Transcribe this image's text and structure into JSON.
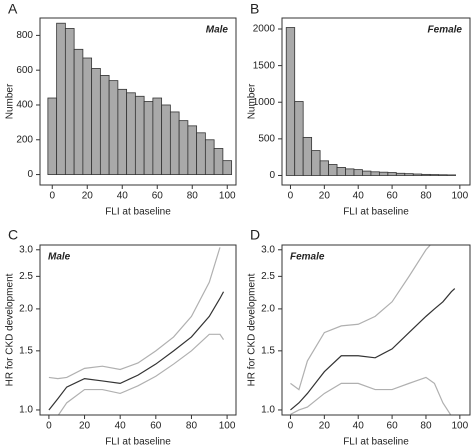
{
  "chart_data": [
    {
      "type": "histogram",
      "panel": "A",
      "annotation": "Male",
      "annotation_position": "top-right",
      "x_label": "FLI at baseline",
      "y_label": "Number",
      "color": "#a9a9a9",
      "bins": [
        -2.5,
        2.5,
        7.5,
        12.5,
        17.5,
        22.5,
        27.5,
        32.5,
        37.5,
        42.5,
        47.5,
        52.5,
        57.5,
        62.5,
        67.5,
        72.5,
        77.5,
        82.5,
        87.5,
        92.5,
        97.5,
        102.5
      ],
      "values": [
        440,
        870,
        840,
        720,
        670,
        610,
        570,
        540,
        490,
        470,
        450,
        420,
        440,
        400,
        360,
        310,
        280,
        240,
        200,
        150,
        80
      ],
      "xlim": [
        -7,
        105
      ],
      "xticks": [
        0,
        20,
        40,
        60,
        80,
        100
      ],
      "ylim": [
        -60,
        900
      ],
      "yticks": [
        0,
        200,
        400,
        600,
        800
      ]
    },
    {
      "type": "histogram",
      "panel": "B",
      "annotation": "Female",
      "annotation_position": "top-right",
      "x_label": "FLI at baseline",
      "y_label": "Number",
      "color": "#a9a9a9",
      "bins": [
        -2.5,
        2.5,
        7.5,
        12.5,
        17.5,
        22.5,
        27.5,
        32.5,
        37.5,
        42.5,
        47.5,
        52.5,
        57.5,
        62.5,
        67.5,
        72.5,
        77.5,
        82.5,
        87.5,
        92.5,
        97.5
      ],
      "values": [
        2020,
        1010,
        520,
        340,
        200,
        150,
        110,
        90,
        80,
        60,
        50,
        45,
        40,
        30,
        25,
        20,
        15,
        12,
        10,
        8
      ],
      "xlim": [
        -5,
        106
      ],
      "xticks": [
        0,
        20,
        40,
        60,
        80,
        100
      ],
      "ylim": [
        -130,
        2150
      ],
      "yticks": [
        0,
        500,
        1000,
        1500,
        2000
      ]
    },
    {
      "type": "line",
      "panel": "C",
      "annotation": "Male",
      "annotation_position": "top-left",
      "x_label": "FLI at baseline",
      "y_label": "HR for CKD development",
      "log_y": true,
      "x": [
        0,
        5,
        10,
        20,
        30,
        40,
        50,
        60,
        70,
        80,
        90,
        96,
        98
      ],
      "series": [
        {
          "color": "#b0b0b0",
          "values": [
            1.25,
            1.24,
            1.25,
            1.33,
            1.35,
            1.32,
            1.38,
            1.5,
            1.65,
            1.9,
            2.4,
            3.05,
            null
          ]
        },
        {
          "color": "#b0b0b0",
          "values": [
            null,
            0.96,
            1.05,
            1.15,
            1.15,
            1.12,
            1.18,
            1.26,
            1.37,
            1.5,
            1.68,
            1.68,
            1.62
          ]
        },
        {
          "color": "#333333",
          "values": [
            1.0,
            1.08,
            1.17,
            1.24,
            1.22,
            1.2,
            1.27,
            1.37,
            1.5,
            1.65,
            1.9,
            2.15,
            2.25
          ]
        }
      ],
      "xlim": [
        -5,
        105
      ],
      "xticks": [
        0,
        20,
        40,
        60,
        80,
        100
      ],
      "ylim": [
        0.966,
        3.1
      ],
      "yticks": [
        {
          "value": 1,
          "label": "1.0"
        },
        {
          "value": 1.5,
          "label": "1.5"
        },
        {
          "value": 2,
          "label": "2.0"
        },
        {
          "value": 2.5,
          "label": "2.5"
        },
        {
          "value": 3,
          "label": "3.0"
        }
      ]
    },
    {
      "type": "line",
      "panel": "D",
      "annotation": "Female",
      "annotation_position": "top-left",
      "x_label": "FLI at baseline",
      "y_label": "HR for CKD development",
      "log_y": true,
      "x": [
        0,
        5,
        10,
        20,
        30,
        40,
        50,
        60,
        70,
        80,
        85,
        90,
        95,
        97
      ],
      "series": [
        {
          "color": "#b0b0b0",
          "values": [
            1.2,
            1.15,
            1.4,
            1.7,
            1.78,
            1.8,
            1.9,
            2.1,
            2.5,
            3.0,
            3.2,
            null,
            null,
            null
          ]
        },
        {
          "color": "#b0b0b0",
          "values": [
            0.97,
            1.0,
            1.02,
            1.12,
            1.2,
            1.2,
            1.15,
            1.15,
            1.2,
            1.25,
            1.2,
            1.05,
            0.96,
            null
          ]
        },
        {
          "color": "#333333",
          "values": [
            1.0,
            1.05,
            1.12,
            1.3,
            1.45,
            1.45,
            1.43,
            1.52,
            1.7,
            1.9,
            2.0,
            2.1,
            2.25,
            2.3
          ]
        }
      ],
      "xlim": [
        -5,
        106
      ],
      "xticks": [
        0,
        20,
        40,
        60,
        80,
        100
      ],
      "ylim": [
        0.966,
        3.1
      ],
      "yticks": [
        {
          "value": 1,
          "label": "1.0"
        },
        {
          "value": 1.5,
          "label": "1.5"
        },
        {
          "value": 2,
          "label": "2.0"
        },
        {
          "value": 2.5,
          "label": "2.5"
        },
        {
          "value": 3,
          "label": "3.0"
        }
      ]
    }
  ]
}
